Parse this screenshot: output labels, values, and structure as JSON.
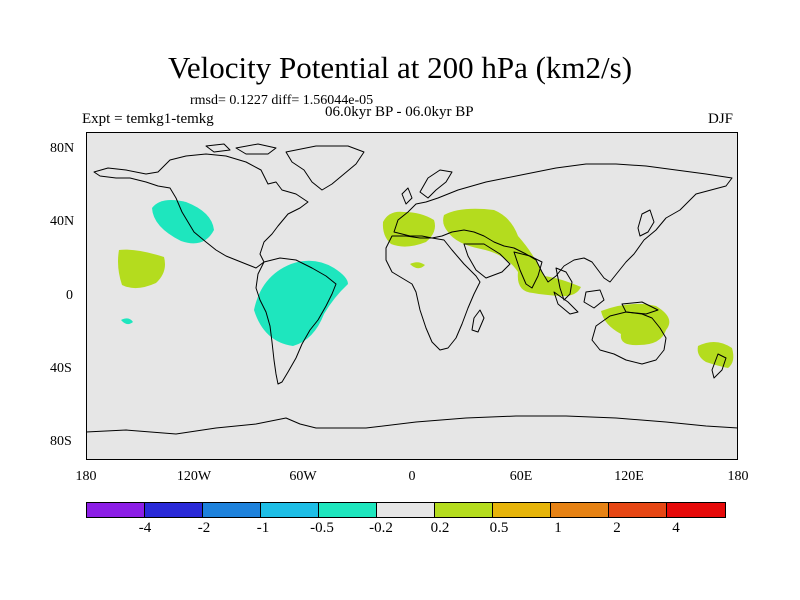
{
  "title": "Velocity Potential at 200 hPa (km2/s)",
  "stats_line": "rmsd= 0.1227 diff= 1.56044e-05",
  "experiment": "Expt = temkg1-temkg",
  "period": "06.0kyr BP - 06.0kyr BP",
  "season": "DJF",
  "map": {
    "projection": "cylindrical equidistant",
    "lon_range": [
      -180,
      180
    ],
    "lat_range": [
      -90,
      90
    ],
    "background_color": "#e6e6e6",
    "lat_labels": [
      "80N",
      "40N",
      "0",
      "40S",
      "80S"
    ],
    "lon_labels": [
      "180",
      "120W",
      "60W",
      "0",
      "60E",
      "120E",
      "180"
    ]
  },
  "colorbar": {
    "colors": [
      "#8c1ee6",
      "#2a2ad8",
      "#1e82dc",
      "#1ebee6",
      "#1ee6be",
      "#e6e6e6",
      "#b4dc1e",
      "#e6b40a",
      "#e68214",
      "#e64614",
      "#e60a0a"
    ],
    "labels": [
      "-4",
      "-2",
      "-1",
      "-0.5",
      "-0.2",
      "0.2",
      "0.5",
      "1",
      "2",
      "4"
    ]
  },
  "anomalies": [
    {
      "region": "NE Pacific",
      "sign": "negative",
      "color": "#1ee6be"
    },
    {
      "region": "Central Pacific",
      "sign": "positive",
      "color": "#b4dc1e"
    },
    {
      "region": "South America",
      "sign": "negative",
      "color": "#1ee6be"
    },
    {
      "region": "SE Pacific islet",
      "sign": "negative",
      "color": "#1ee6be"
    },
    {
      "region": "North Africa / Iberia",
      "sign": "positive",
      "color": "#b4dc1e"
    },
    {
      "region": "Sahara",
      "sign": "positive",
      "color": "#b4dc1e"
    },
    {
      "region": "Middle East / India",
      "sign": "positive",
      "color": "#b4dc1e"
    },
    {
      "region": "Maritime Continent / N Australia",
      "sign": "positive",
      "color": "#b4dc1e"
    },
    {
      "region": "SW Pacific / New Zealand",
      "sign": "positive",
      "color": "#b4dc1e"
    }
  ]
}
